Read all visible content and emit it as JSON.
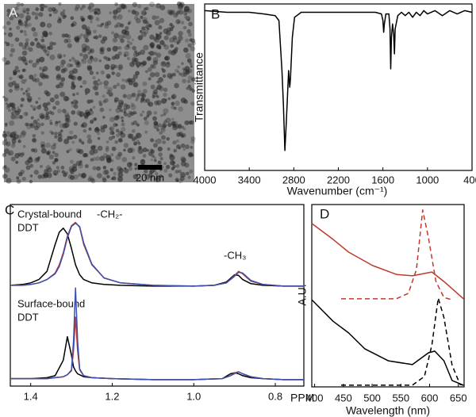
{
  "image_panel": {
    "label": "A",
    "scale_bar_label": "20 nm"
  },
  "chart_data": [
    {
      "type": "line",
      "panel_label": "B",
      "xlabel": "Wavenumber (cm⁻¹)",
      "ylabel": "Transmittance",
      "x": [
        4000,
        3700,
        3400,
        3200,
        3050,
        3000,
        2960,
        2940,
        2920,
        2900,
        2870,
        2855,
        2845,
        2820,
        2790,
        2700,
        2500,
        2200,
        1900,
        1700,
        1620,
        1600,
        1590,
        1580,
        1560,
        1520,
        1505,
        1495,
        1485,
        1470,
        1455,
        1445,
        1435,
        1400,
        1350,
        1300,
        1250,
        1200,
        1150,
        1100,
        1050,
        1000,
        900,
        800,
        700,
        600,
        500,
        400
      ],
      "series": [
        {
          "color": "#000000",
          "values": [
            96,
            95,
            95,
            94,
            93,
            90,
            60,
            40,
            12,
            30,
            60,
            50,
            55,
            80,
            92,
            95,
            95,
            95,
            95,
            95,
            94,
            90,
            83,
            88,
            94,
            94,
            85,
            61,
            80,
            88,
            82,
            70,
            85,
            93,
            95,
            93,
            95,
            92,
            95,
            93,
            96,
            94,
            96,
            93,
            96,
            94,
            96,
            95
          ]
        }
      ],
      "xlim": [
        4000,
        400
      ],
      "ylim": [
        0,
        100
      ],
      "xticks": [
        4000,
        3400,
        2800,
        2200,
        1600,
        1000,
        400
      ]
    },
    {
      "type": "line",
      "panel_label": "C",
      "annotations": [
        "Crystal-bound",
        "DDT",
        "-CH₂-",
        "-CH₃"
      ],
      "x": [
        1.45,
        1.42,
        1.4,
        1.38,
        1.36,
        1.34,
        1.33,
        1.32,
        1.31,
        1.3,
        1.29,
        1.28,
        1.27,
        1.25,
        1.22,
        1.18,
        1.1,
        1.0,
        0.95,
        0.92,
        0.9,
        0.89,
        0.88,
        0.86,
        0.83,
        0.78,
        0.73
      ],
      "series": [
        {
          "color": "#000000",
          "values": [
            5,
            6,
            8,
            12,
            22,
            55,
            70,
            75,
            68,
            50,
            30,
            18,
            12,
            8,
            6,
            5,
            4,
            4,
            5,
            9,
            18,
            17,
            12,
            7,
            5,
            4,
            4
          ]
        },
        {
          "color": "#c0392b",
          "values": [
            5,
            5,
            6,
            8,
            12,
            20,
            30,
            45,
            65,
            78,
            82,
            76,
            55,
            30,
            14,
            8,
            5,
            4,
            5,
            8,
            17,
            22,
            19,
            10,
            6,
            4,
            4
          ]
        },
        {
          "color": "#3b4fb0",
          "values": [
            5,
            5,
            6,
            8,
            12,
            19,
            28,
            43,
            63,
            77,
            81,
            77,
            57,
            31,
            14,
            8,
            5,
            4,
            5,
            8,
            16,
            21,
            20,
            11,
            6,
            4,
            4
          ]
        }
      ],
      "xlim": [
        1.45,
        0.73
      ],
      "ylim": [
        0,
        100
      ]
    },
    {
      "type": "line",
      "annotations": [
        "Surface-bound",
        "DDT"
      ],
      "xlabel": "PPM",
      "x": [
        1.45,
        1.4,
        1.36,
        1.34,
        1.32,
        1.31,
        1.3,
        1.295,
        1.29,
        1.285,
        1.28,
        1.27,
        1.25,
        1.2,
        1.1,
        1.0,
        0.93,
        0.91,
        0.9,
        0.89,
        0.88,
        0.86,
        0.83,
        0.78,
        0.73
      ],
      "series": [
        {
          "color": "#000000",
          "values": [
            6,
            6,
            7,
            9,
            25,
            49,
            30,
            18,
            14,
            11,
            10,
            8,
            7,
            6,
            5,
            5,
            6,
            11,
            12,
            11,
            9,
            7,
            6,
            5,
            5
          ]
        },
        {
          "color": "#c0392b",
          "values": [
            6,
            6,
            6,
            7,
            8,
            10,
            14,
            35,
            69,
            35,
            15,
            9,
            7,
            6,
            5,
            5,
            6,
            9,
            12,
            13,
            11,
            8,
            6,
            5,
            5
          ]
        },
        {
          "color": "#3b4fb0",
          "values": [
            6,
            6,
            6,
            7,
            8,
            10,
            15,
            45,
            99,
            45,
            16,
            9,
            7,
            6,
            5,
            5,
            6,
            9,
            11,
            13,
            11,
            8,
            6,
            5,
            5
          ]
        }
      ],
      "xlim": [
        1.45,
        0.73
      ],
      "ylim": [
        0,
        100
      ],
      "xticks": [
        1.4,
        1.2,
        {
          "value": 1,
          "label": "1.0"
        },
        0.8
      ]
    },
    {
      "type": "line",
      "panel_label": "D",
      "xlabel": "Wavelength (nm)",
      "ylabel": "A.U.",
      "series": [
        {
          "color": "#c0392b",
          "dashed": false,
          "x": [
            395,
            432,
            459,
            501,
            542,
            570,
            604,
            625,
            659
          ],
          "values": [
            89.6,
            80.9,
            73.9,
            66.5,
            61.7,
            60.9,
            63,
            57.8,
            48.3
          ]
        },
        {
          "color": "#c0392b",
          "dashed": true,
          "x": [
            446,
            542,
            563,
            577,
            588,
            598,
            611,
            625,
            639
          ],
          "values": [
            48.3,
            48.3,
            51.3,
            64.3,
            97,
            81.7,
            57.8,
            49,
            47.8
          ]
        },
        {
          "color": "#000000",
          "dashed": false,
          "x": [
            395,
            432,
            459,
            487,
            528,
            570,
            598,
            609,
            625,
            639,
            659
          ],
          "values": [
            47.8,
            36,
            29.6,
            20.9,
            14.3,
            12.2,
            18.7,
            19.6,
            14.3,
            3.5,
            0.9
          ]
        },
        {
          "color": "#000000",
          "dashed": true,
          "x": [
            446,
            570,
            591,
            604,
            615,
            625,
            639,
            653,
            659
          ],
          "values": [
            0.9,
            0.9,
            5.7,
            23,
            48.7,
            38,
            12,
            1.3,
            0.9
          ]
        }
      ],
      "xlim": [
        395,
        660
      ],
      "ylim": [
        0,
        100
      ],
      "xticks": [
        400,
        450,
        500,
        550,
        600,
        650
      ]
    }
  ]
}
